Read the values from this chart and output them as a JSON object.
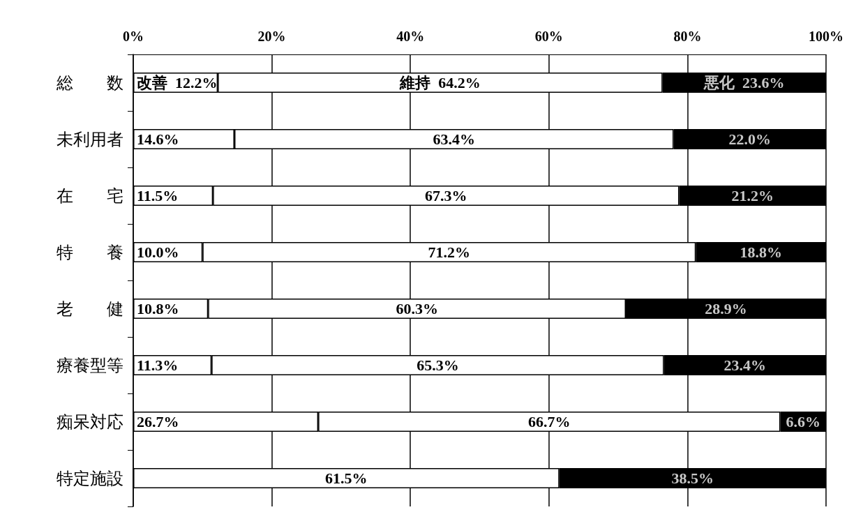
{
  "chart_data": {
    "type": "bar",
    "orientation": "horizontal",
    "stacked": true,
    "categories": [
      "総　　数",
      "未利用者",
      "在　　宅",
      "特　　養",
      "老　　健",
      "療養型等",
      "痴呆対応",
      "特定施設"
    ],
    "series": [
      {
        "name": "改善",
        "color": "#ffffff",
        "values": [
          12.2,
          14.6,
          11.5,
          10.0,
          10.8,
          11.3,
          26.7,
          0
        ],
        "value_labels": [
          "12.2%",
          "14.6%",
          "11.5%",
          "10.0%",
          "10.8%",
          "11.3%",
          "26.7%",
          null
        ]
      },
      {
        "name": "維持",
        "color": "#ffffff",
        "values": [
          64.2,
          63.4,
          67.3,
          71.2,
          60.3,
          65.3,
          66.7,
          61.5
        ],
        "value_labels": [
          "64.2%",
          "63.4%",
          "67.3%",
          "71.2%",
          "60.3%",
          "65.3%",
          "66.7%",
          "61.5%"
        ]
      },
      {
        "name": "悪化",
        "color": "#000000",
        "values": [
          23.6,
          22.0,
          21.2,
          18.8,
          28.9,
          23.4,
          6.6,
          38.5
        ],
        "value_labels": [
          "23.6%",
          "22.0%",
          "21.2%",
          "18.8%",
          "28.9%",
          "23.4%",
          "6.6%",
          "38.5%"
        ]
      }
    ],
    "xlim": [
      0,
      100
    ],
    "xticks": [
      {
        "value": 0,
        "label": "0%"
      },
      {
        "value": 20,
        "label": "20%"
      },
      {
        "value": 40,
        "label": "40%"
      },
      {
        "value": 60,
        "label": "60%"
      },
      {
        "value": 80,
        "label": "80%"
      },
      {
        "value": 100,
        "label": "100%"
      }
    ],
    "grid": "x",
    "legend": false
  }
}
